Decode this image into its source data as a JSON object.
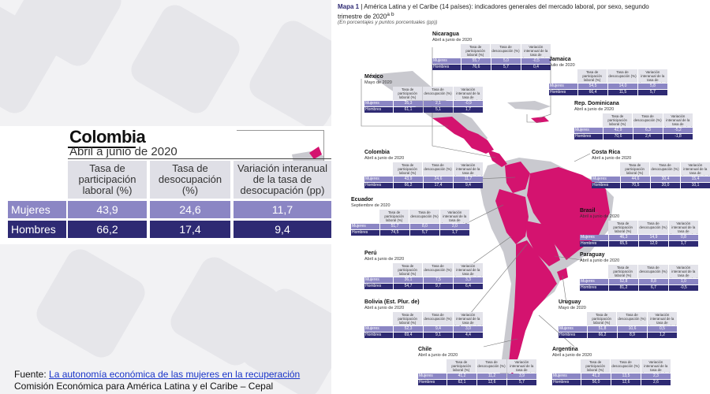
{
  "zoom": {
    "country": "Colombia",
    "period": "Abril a junio de 2020",
    "headers": [
      "Tasa de participación laboral (%)",
      "Tasa de desocupación (%)",
      "Variación interanual de la tasa de desocupación (pp)"
    ],
    "rows": [
      {
        "label": "Mujeres",
        "values": [
          "43,9",
          "24,6",
          "11,7"
        ]
      },
      {
        "label": "Hombres",
        "values": [
          "66,2",
          "17,4",
          "9,4"
        ]
      }
    ]
  },
  "source": {
    "prefix": "Fuente: ",
    "link": "La autonomía económica de las mujeres en la recuperación",
    "line2": "Comisión Económica para América Latina y el Caribe – Cepal"
  },
  "map": {
    "label": "Mapa 1",
    "title": "América Latina y el Caribe (14 países): indicadores generales del mercado laboral, por sexo, segundo trimestre de 2020",
    "title_sup": "a b",
    "subtitle": "(En porcentajes y puntos porcentuales (pp))",
    "colors": {
      "highlight": "#d4136f",
      "land": "#c9c9cf",
      "women": "#8b86c4",
      "men": "#2e2a73",
      "header": "#e3e3ea"
    },
    "col_headers": [
      "Tasa de participación laboral (%)",
      "Tasa de desocupación (%)",
      "Variación interanual de la tasa de desocupación (pp)"
    ],
    "row_labels": [
      "Mujeres",
      "Hombres"
    ],
    "countries": [
      {
        "name": "Nicaragua",
        "period": "Abril a junio de 2020",
        "mujeres": [
          "55,7",
          "5,0",
          "-0,5"
        ],
        "hombres": [
          "76,6",
          "5,7",
          "0,4"
        ]
      },
      {
        "name": "Jamaica",
        "period": "Julio de 2020",
        "mujeres": [
          "54,5",
          "14,0",
          "5,8"
        ],
        "hombres": [
          "66,4",
          "11,5",
          "5,7"
        ]
      },
      {
        "name": "México",
        "period": "Mayo de 2020",
        "mujeres": [
          "35,3",
          "2,1",
          "-0,9"
        ],
        "hombres": [
          "61,1",
          "5,1",
          "1,7"
        ]
      },
      {
        "name": "Rep. Dominicana",
        "period": "Abril a junio de 2020",
        "mujeres": [
          "42,9",
          "6,3",
          "-5,2"
        ],
        "hombres": [
          "70,6",
          "2,4",
          "-1,8"
        ]
      },
      {
        "name": "Colombia",
        "period": "Abril a junio de 2020",
        "mujeres": [
          "43,9",
          "24,6",
          "11,7"
        ],
        "hombres": [
          "66,2",
          "17,4",
          "9,4"
        ]
      },
      {
        "name": "Costa Rica",
        "period": "Abril a junio de 2020",
        "mujeres": [
          "44,6",
          "30,4",
          "15,4"
        ],
        "hombres": [
          "70,5",
          "20,0",
          "10,1"
        ]
      },
      {
        "name": "Ecuador",
        "period": "Septiembre de 2020",
        "mujeres": [
          "51,7",
          "8,0",
          "2,0"
        ],
        "hombres": [
          "74,5",
          "5,7",
          "1,7"
        ]
      },
      {
        "name": "Brasil",
        "period": "Abril a junio de 2020",
        "mujeres": [
          "46,3",
          "14,9",
          "0,8"
        ],
        "hombres": [
          "65,5",
          "12,0",
          "1,7"
        ]
      },
      {
        "name": "Perú",
        "period": "Abril a junio de 2020",
        "mujeres": [
          "36,1",
          "7,5",
          "3,3"
        ],
        "hombres": [
          "54,7",
          "9,7",
          "6,4"
        ]
      },
      {
        "name": "Paraguay",
        "period": "Abril a junio de 2020",
        "mujeres": [
          "52,8",
          "8,8",
          "1,0"
        ],
        "hombres": [
          "81,2",
          "6,7",
          "-0,5"
        ]
      },
      {
        "name": "Bolivia (Est. Plur. de)",
        "period": "Abril a junio de 2020",
        "mujeres": [
          "52,3",
          "9,4",
          "3,0"
        ],
        "hombres": [
          "69,4",
          "9,1",
          "4,4"
        ]
      },
      {
        "name": "Uruguay",
        "period": "Mayo de 2020",
        "mujeres": [
          "51,8",
          "10,6",
          "0,5"
        ],
        "hombres": [
          "66,2",
          "8,9",
          "1,2"
        ]
      },
      {
        "name": "Chile",
        "period": "Abril a junio de 2020",
        "mujeres": [
          "41,2",
          "11,2",
          "3,9"
        ],
        "hombres": [
          "62,1",
          "12,6",
          "5,7"
        ]
      },
      {
        "name": "Argentina",
        "period": "Abril a junio de 2020",
        "mujeres": [
          "41,2",
          "13,5",
          "2,3"
        ],
        "hombres": [
          "56,0",
          "12,6",
          "2,6"
        ]
      }
    ]
  }
}
